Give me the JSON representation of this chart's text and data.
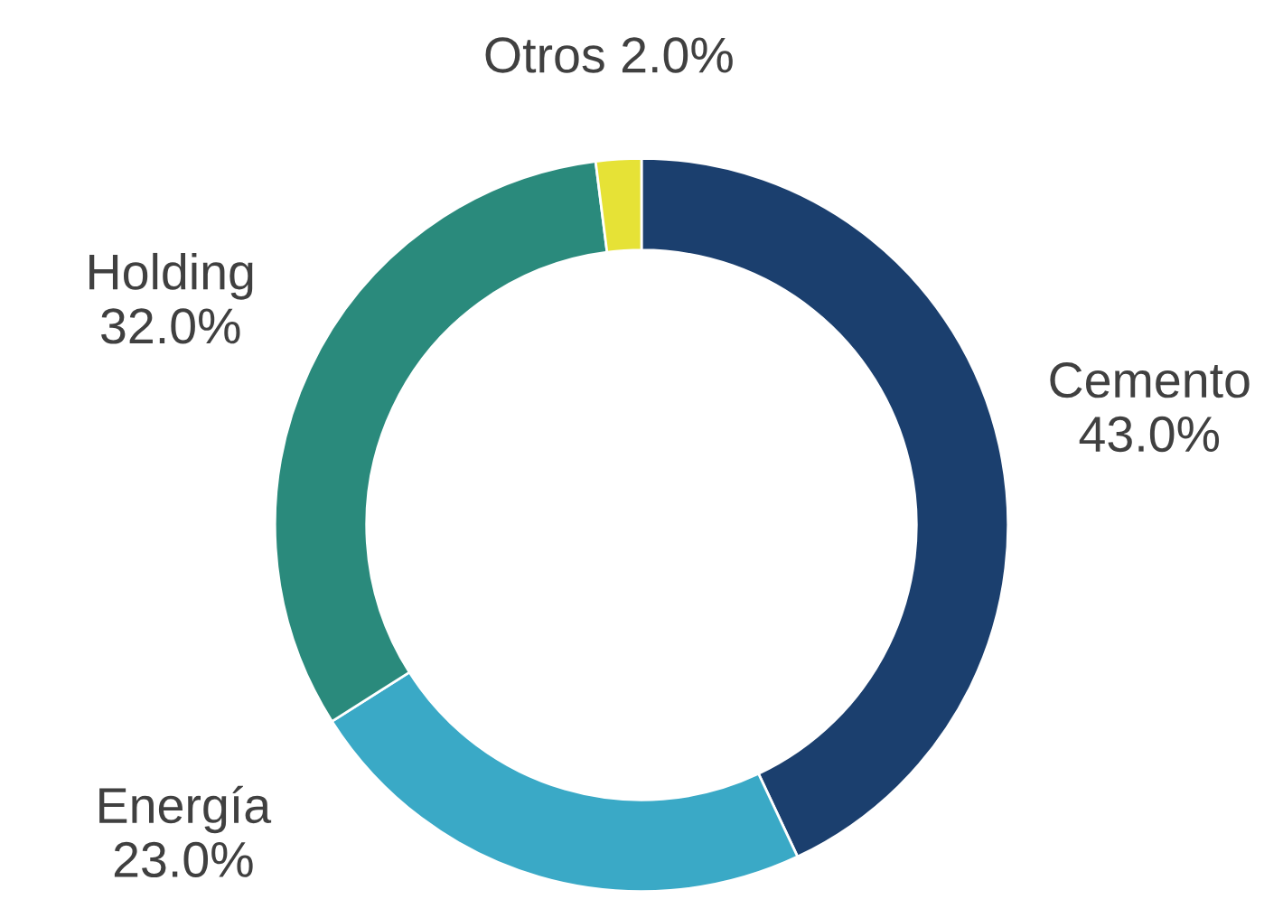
{
  "chart_data": {
    "type": "donut",
    "categories": [
      "Cemento",
      "Energía",
      "Holding",
      "Otros"
    ],
    "values": [
      43.0,
      23.0,
      32.0,
      2.0
    ],
    "value_labels": [
      "43.0%",
      "23.0%",
      "32.0%",
      "2.0%"
    ],
    "colors": [
      "#1b3f6e",
      "#3aa9c6",
      "#2a8a7c",
      "#e6e236"
    ],
    "legend": false
  }
}
